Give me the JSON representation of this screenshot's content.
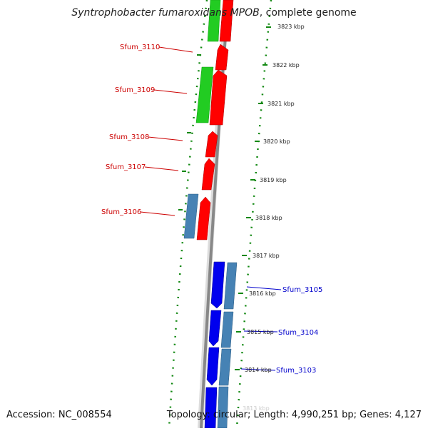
{
  "title": {
    "italic": "Syntrophobacter fumaroxidans MPOB",
    "suffix": ", complete genome"
  },
  "footer": {
    "accession": "Accession: NC_008554",
    "summary": "Topology: circular; Length: 4,990,251 bp; Genes: 4,127"
  },
  "colors": {
    "forward_cds": "#ff0000",
    "forward_orf": "#22cc22",
    "reverse_cds": "#0000ee",
    "reverse_orf": "#4682b4",
    "backbone": "#888888",
    "ticks": "#118811",
    "label_forward": "#cc0000",
    "label_reverse": "#0000cc"
  },
  "scale_labels": [
    "3823 kbp",
    "3822 kbp",
    "3821 kbp",
    "3820 kbp",
    "3819 kbp",
    "3818 kbp",
    "3817 kbp",
    "3816 kbp",
    "3815 kbp",
    "3814 kbp",
    "3813 kbp"
  ],
  "gene_labels": {
    "forward": [
      "Sfum_3110",
      "Sfum_3109",
      "Sfum_3108",
      "Sfum_3107",
      "Sfum_3106"
    ],
    "reverse": [
      "Sfum_3105",
      "Sfum_3104",
      "Sfum_3103"
    ]
  }
}
